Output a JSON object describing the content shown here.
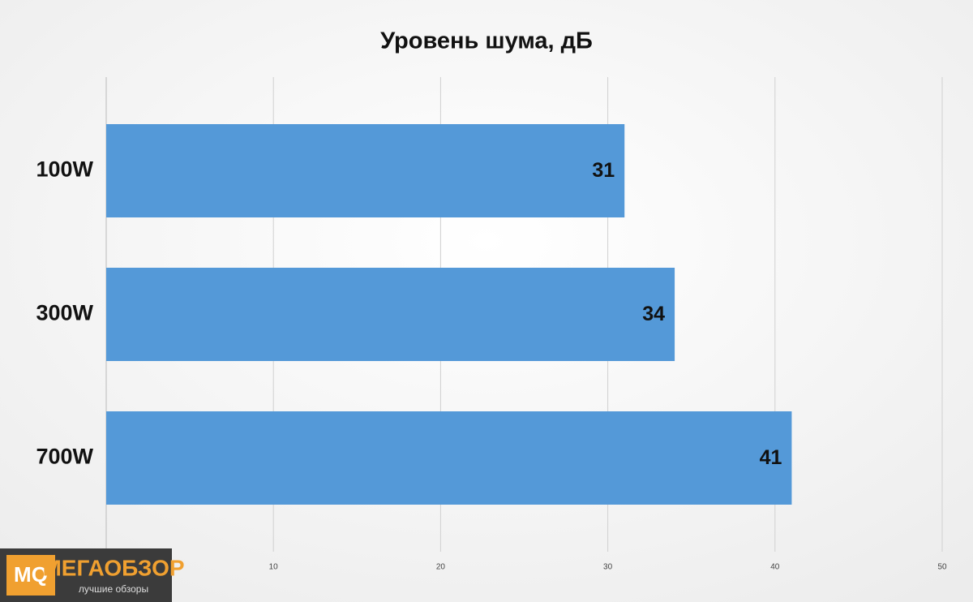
{
  "chart_data": {
    "type": "hbar",
    "title": "Уровень шума, дБ",
    "categories": [
      "100W",
      "300W",
      "700W"
    ],
    "values": [
      31,
      34,
      41
    ],
    "color": "#5499d8",
    "xlim": [
      0,
      50
    ],
    "xticks": [
      10,
      20,
      30,
      40,
      50
    ],
    "grid": true
  },
  "logo": {
    "mark": "MQ",
    "name": "МЕГАОБЗОР",
    "tagline": "лучшие обзоры"
  }
}
